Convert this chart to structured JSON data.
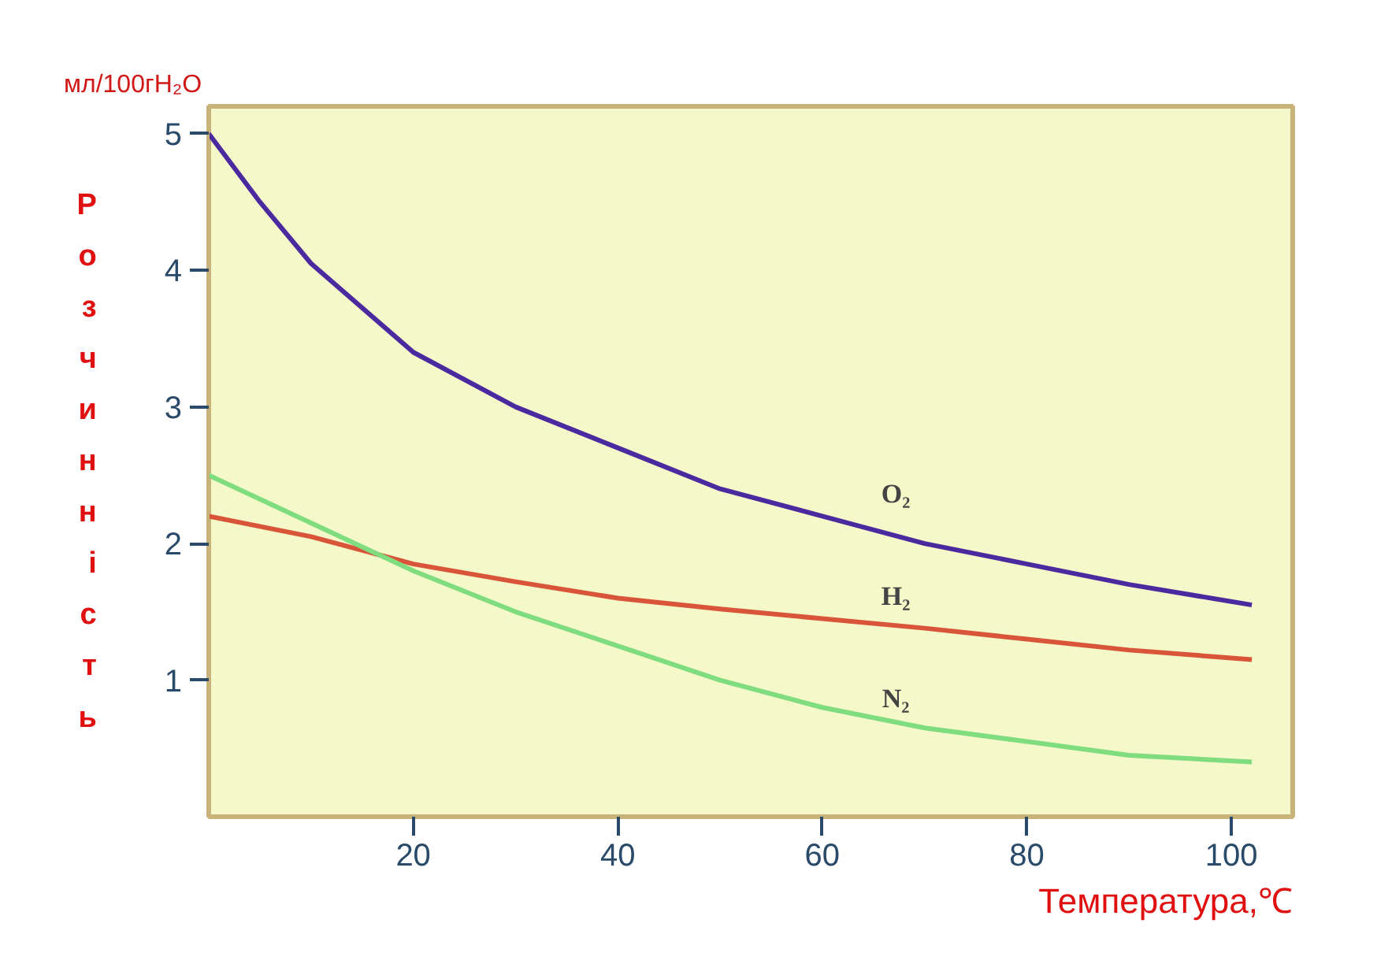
{
  "chart_data": {
    "type": "line",
    "ylabel": "Розчинність",
    "xlabel": "Температура,℃",
    "annotations": [
      "мл/100гH₂O",
      "O₂",
      "H₂",
      "N₂"
    ],
    "xlim": [
      0,
      106
    ],
    "ylim": [
      0,
      5.2
    ],
    "xticks": [
      20,
      40,
      60,
      80,
      100
    ],
    "yticks": [
      1,
      2,
      3,
      4,
      5
    ],
    "grid": false,
    "marker": "none",
    "line_style": "solid",
    "series": [
      {
        "color": "#4b2aa0",
        "x": [
          0,
          5,
          10,
          20,
          30,
          40,
          50,
          60,
          70,
          80,
          90,
          102
        ],
        "values": [
          5.0,
          4.5,
          4.05,
          3.4,
          3.0,
          2.7,
          2.4,
          2.2,
          2.0,
          1.85,
          1.7,
          1.55
        ]
      },
      {
        "color": "#d9553a",
        "x": [
          0,
          10,
          20,
          30,
          40,
          50,
          60,
          70,
          80,
          90,
          102
        ],
        "values": [
          2.2,
          2.05,
          1.85,
          1.72,
          1.6,
          1.52,
          1.45,
          1.38,
          1.3,
          1.22,
          1.15
        ]
      },
      {
        "color": "#7fdc7f",
        "x": [
          0,
          10,
          20,
          30,
          40,
          50,
          60,
          70,
          80,
          90,
          102
        ],
        "values": [
          2.5,
          2.15,
          1.8,
          1.5,
          1.25,
          1.0,
          0.8,
          0.65,
          0.55,
          0.45,
          0.4
        ]
      }
    ]
  }
}
